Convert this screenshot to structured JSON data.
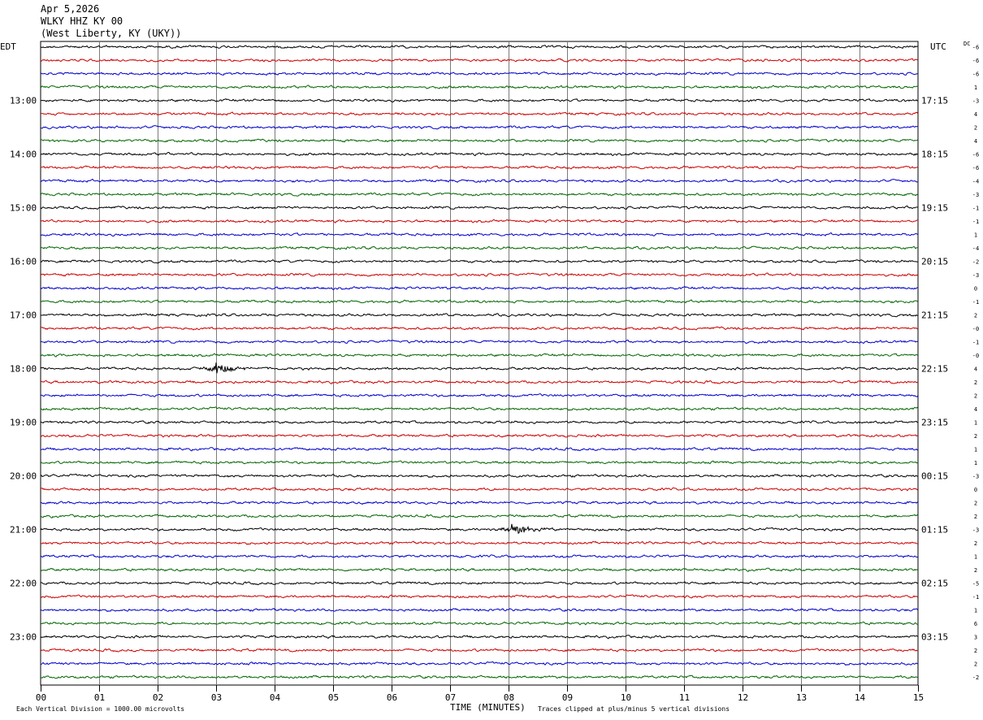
{
  "chart_data": {
    "type": "line",
    "title": "Apr 5,2026",
    "subtitle_station": "WLKY HHZ KY 00",
    "subtitle_location": "(West Liberty, KY (UKY))",
    "left_axis_label": "EDT",
    "right_axis_label": "UTC",
    "dc_label": "DC",
    "xlabel": "TIME (MINUTES)",
    "xlim": [
      0,
      15
    ],
    "x_ticks": [
      "00",
      "01",
      "02",
      "03",
      "04",
      "05",
      "06",
      "07",
      "08",
      "09",
      "10",
      "11",
      "12",
      "13",
      "14",
      "15"
    ],
    "lines_per_hour": 4,
    "minutes_per_line": 15,
    "trace_colors": [
      "#000000",
      "#cc0000",
      "#0000cc",
      "#006600"
    ],
    "left_hour_labels": [
      {
        "line": 4,
        "text": "13:00"
      },
      {
        "line": 8,
        "text": "14:00"
      },
      {
        "line": 12,
        "text": "15:00"
      },
      {
        "line": 16,
        "text": "16:00"
      },
      {
        "line": 20,
        "text": "17:00"
      },
      {
        "line": 24,
        "text": "18:00"
      },
      {
        "line": 28,
        "text": "19:00"
      },
      {
        "line": 32,
        "text": "20:00"
      },
      {
        "line": 36,
        "text": "21:00"
      },
      {
        "line": 40,
        "text": "22:00"
      },
      {
        "line": 44,
        "text": "23:00"
      }
    ],
    "right_hour_labels": [
      {
        "line": 4,
        "text": "17:15"
      },
      {
        "line": 8,
        "text": "18:15"
      },
      {
        "line": 12,
        "text": "19:15"
      },
      {
        "line": 16,
        "text": "20:15"
      },
      {
        "line": 20,
        "text": "21:15"
      },
      {
        "line": 24,
        "text": "22:15"
      },
      {
        "line": 28,
        "text": "23:15"
      },
      {
        "line": 32,
        "text": "00:15"
      },
      {
        "line": 36,
        "text": "01:15"
      },
      {
        "line": 40,
        "text": "02:15"
      },
      {
        "line": 44,
        "text": "03:15"
      }
    ],
    "dc_offsets": [
      "-6",
      "-6",
      "-6",
      "1",
      "-3",
      "4",
      "2",
      "4",
      "-6",
      "-6",
      "-4",
      "-3",
      "-1",
      "-1",
      "1",
      "-4",
      "-2",
      "-3",
      "0",
      "-1",
      "2",
      "-0",
      "-1",
      "-0",
      "4",
      "2",
      "2",
      "4",
      "1",
      "2",
      "1",
      "1",
      "-3",
      "0",
      "2",
      "2",
      "-3",
      "2",
      "1",
      "2",
      "-5",
      "-1",
      "1",
      "6",
      "3",
      "2",
      "2",
      "-2"
    ],
    "events": [
      {
        "line": 24,
        "minute": 2.95,
        "amplitude": 3.2,
        "duration_min": 0.8
      },
      {
        "line": 36,
        "minute": 8.05,
        "amplitude": 2.4,
        "duration_min": 0.9
      }
    ],
    "footer_left": "Each Vertical Division = 1000.00 microvolts",
    "footer_right": "Traces clipped at plus/minus 5 vertical divisions",
    "grid": true
  }
}
